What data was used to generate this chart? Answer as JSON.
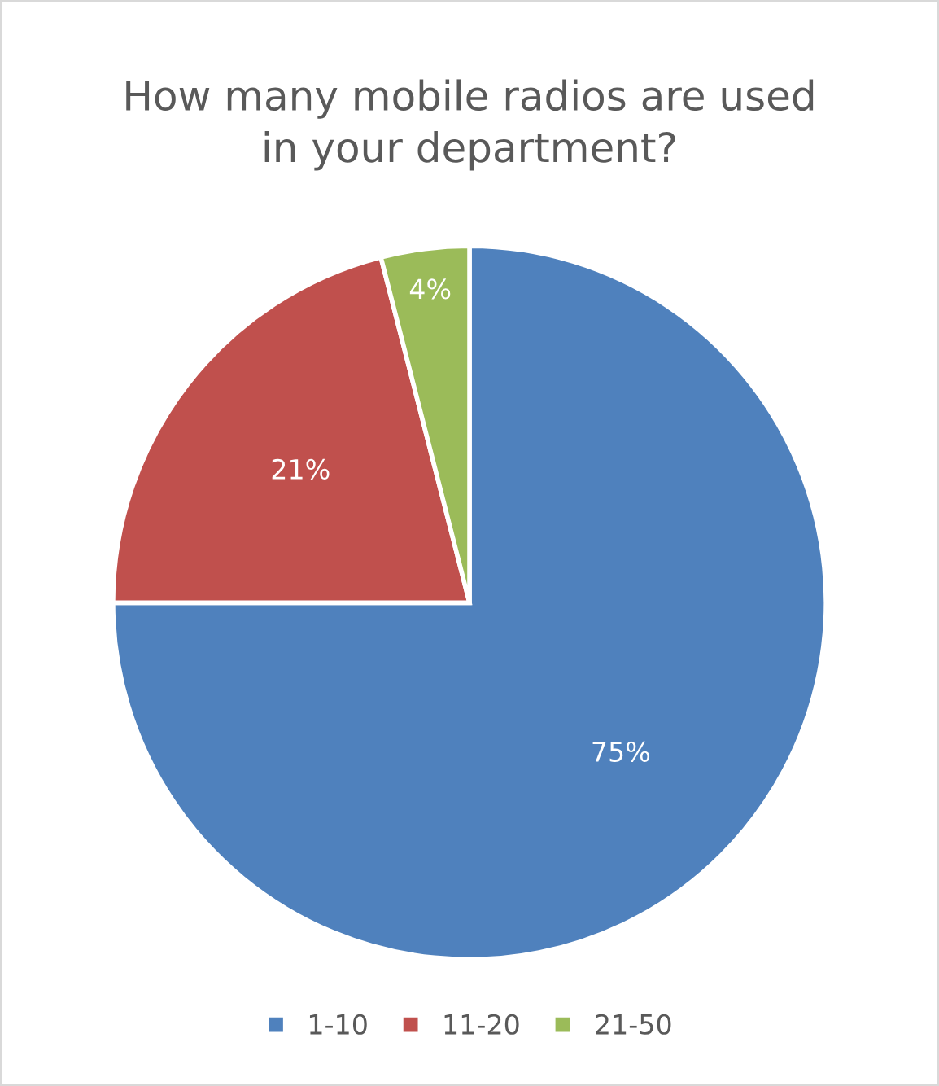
{
  "chart_data": {
    "type": "pie",
    "title": "How many mobile radios are used\nin your department?",
    "categories": [
      "1-10",
      "11-20",
      "21-50"
    ],
    "values": [
      75,
      21,
      4
    ],
    "colors": [
      "#4f81bd",
      "#c0504d",
      "#9bbb59"
    ],
    "value_labels": [
      "75%",
      "21%",
      "4%"
    ],
    "legend": "bottom"
  }
}
